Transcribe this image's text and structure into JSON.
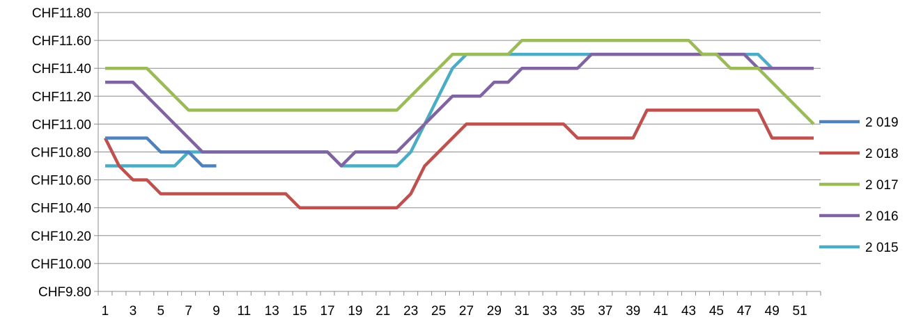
{
  "chart_data": {
    "type": "line",
    "title": "",
    "xlabel": "",
    "ylabel": "",
    "ylim": [
      9.8,
      11.8
    ],
    "y_tick_step": 0.2,
    "y_tick_prefix": "CHF",
    "x_range": [
      1,
      52
    ],
    "x_tick_labels": [
      "1",
      "3",
      "5",
      "7",
      "9",
      "11",
      "13",
      "15",
      "17",
      "19",
      "21",
      "23",
      "25",
      "27",
      "29",
      "31",
      "33",
      "35",
      "37",
      "39",
      "41",
      "43",
      "45",
      "47",
      "49",
      "51"
    ],
    "grid": "horizontal",
    "legend_position": "right",
    "series": [
      {
        "name": "2 019",
        "color": "#4f81bd",
        "x": [
          1,
          2,
          3,
          4,
          5,
          6,
          7,
          8,
          9
        ],
        "values": [
          10.9,
          10.9,
          10.9,
          10.9,
          10.8,
          10.8,
          10.8,
          10.7,
          10.7
        ]
      },
      {
        "name": "2 018",
        "color": "#c0504d",
        "x": [
          1,
          2,
          3,
          4,
          5,
          6,
          7,
          8,
          9,
          10,
          11,
          12,
          13,
          14,
          15,
          16,
          17,
          18,
          19,
          20,
          21,
          22,
          23,
          24,
          25,
          26,
          27,
          28,
          29,
          30,
          31,
          32,
          33,
          34,
          35,
          36,
          37,
          38,
          39,
          40,
          41,
          42,
          43,
          44,
          45,
          46,
          47,
          48,
          49,
          50,
          51,
          52
        ],
        "values": [
          10.9,
          10.7,
          10.6,
          10.6,
          10.5,
          10.5,
          10.5,
          10.5,
          10.5,
          10.5,
          10.5,
          10.5,
          10.5,
          10.5,
          10.4,
          10.4,
          10.4,
          10.4,
          10.4,
          10.4,
          10.4,
          10.4,
          10.5,
          10.7,
          10.8,
          10.9,
          11.0,
          11.0,
          11.0,
          11.0,
          11.0,
          11.0,
          11.0,
          11.0,
          10.9,
          10.9,
          10.9,
          10.9,
          10.9,
          11.1,
          11.1,
          11.1,
          11.1,
          11.1,
          11.1,
          11.1,
          11.1,
          11.1,
          10.9,
          10.9,
          10.9,
          10.9
        ]
      },
      {
        "name": "2 017",
        "color": "#9bbb59",
        "x": [
          1,
          2,
          3,
          4,
          5,
          6,
          7,
          8,
          9,
          10,
          11,
          12,
          13,
          14,
          15,
          16,
          17,
          18,
          19,
          20,
          21,
          22,
          23,
          24,
          25,
          26,
          27,
          28,
          29,
          30,
          31,
          32,
          33,
          34,
          35,
          36,
          37,
          38,
          39,
          40,
          41,
          42,
          43,
          44,
          45,
          46,
          47,
          48,
          49,
          50,
          51,
          52
        ],
        "values": [
          11.4,
          11.4,
          11.4,
          11.4,
          11.3,
          11.2,
          11.1,
          11.1,
          11.1,
          11.1,
          11.1,
          11.1,
          11.1,
          11.1,
          11.1,
          11.1,
          11.1,
          11.1,
          11.1,
          11.1,
          11.1,
          11.1,
          11.2,
          11.3,
          11.4,
          11.5,
          11.5,
          11.5,
          11.5,
          11.5,
          11.6,
          11.6,
          11.6,
          11.6,
          11.6,
          11.6,
          11.6,
          11.6,
          11.6,
          11.6,
          11.6,
          11.6,
          11.6,
          11.5,
          11.5,
          11.4,
          11.4,
          11.4,
          11.3,
          11.2,
          11.1,
          11.0
        ]
      },
      {
        "name": "2 016",
        "color": "#8064a2",
        "x": [
          1,
          2,
          3,
          4,
          5,
          6,
          7,
          8,
          9,
          10,
          11,
          12,
          13,
          14,
          15,
          16,
          17,
          18,
          19,
          20,
          21,
          22,
          23,
          24,
          25,
          26,
          27,
          28,
          29,
          30,
          31,
          32,
          33,
          34,
          35,
          36,
          37,
          38,
          39,
          40,
          41,
          42,
          43,
          44,
          45,
          46,
          47,
          48,
          49,
          50,
          51,
          52
        ],
        "values": [
          11.3,
          11.3,
          11.3,
          11.2,
          11.1,
          11.0,
          10.9,
          10.8,
          10.8,
          10.8,
          10.8,
          10.8,
          10.8,
          10.8,
          10.8,
          10.8,
          10.8,
          10.7,
          10.8,
          10.8,
          10.8,
          10.8,
          10.9,
          11.0,
          11.1,
          11.2,
          11.2,
          11.2,
          11.3,
          11.3,
          11.4,
          11.4,
          11.4,
          11.4,
          11.4,
          11.5,
          11.5,
          11.5,
          11.5,
          11.5,
          11.5,
          11.5,
          11.5,
          11.5,
          11.5,
          11.5,
          11.5,
          11.4,
          11.4,
          11.4,
          11.4,
          11.4
        ]
      },
      {
        "name": "2 015",
        "color": "#4bacc6",
        "x": [
          1,
          2,
          3,
          4,
          5,
          6,
          7,
          8,
          9,
          10,
          11,
          12,
          13,
          14,
          15,
          16,
          17,
          18,
          19,
          20,
          21,
          22,
          23,
          24,
          25,
          26,
          27,
          28,
          29,
          30,
          31,
          32,
          33,
          34,
          35,
          36,
          37,
          38,
          39,
          40,
          41,
          42,
          43,
          44,
          45,
          46,
          47,
          48,
          49,
          50,
          51,
          52
        ],
        "values": [
          10.7,
          10.7,
          10.7,
          10.7,
          10.7,
          10.7,
          10.8,
          10.8,
          10.8,
          10.8,
          10.8,
          10.8,
          10.8,
          10.8,
          10.8,
          10.8,
          10.8,
          10.7,
          10.7,
          10.7,
          10.7,
          10.7,
          10.8,
          11.0,
          11.2,
          11.4,
          11.5,
          11.5,
          11.5,
          11.5,
          11.5,
          11.5,
          11.5,
          11.5,
          11.5,
          11.5,
          11.5,
          11.5,
          11.5,
          11.5,
          11.5,
          11.5,
          11.5,
          11.5,
          11.5,
          11.5,
          11.5,
          11.5,
          11.4,
          11.4,
          11.4,
          11.4
        ]
      }
    ]
  }
}
